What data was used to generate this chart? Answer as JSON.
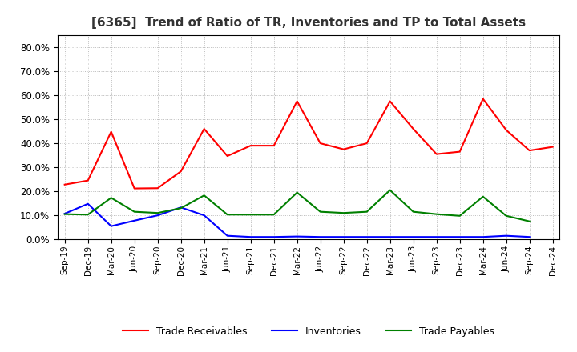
{
  "title": "[6365]  Trend of Ratio of TR, Inventories and TP to Total Assets",
  "x_labels": [
    "Sep-19",
    "Dec-19",
    "Mar-20",
    "Jun-20",
    "Sep-20",
    "Dec-20",
    "Mar-21",
    "Jun-21",
    "Sep-21",
    "Dec-21",
    "Mar-22",
    "Jun-22",
    "Sep-22",
    "Dec-22",
    "Mar-23",
    "Jun-23",
    "Sep-23",
    "Dec-23",
    "Mar-24",
    "Jun-24",
    "Sep-24",
    "Dec-24"
  ],
  "trade_receivables": [
    0.228,
    0.245,
    0.448,
    0.212,
    0.213,
    0.283,
    0.46,
    0.347,
    0.39,
    0.39,
    0.575,
    0.4,
    0.375,
    0.4,
    0.575,
    0.46,
    0.355,
    0.365,
    0.585,
    0.455,
    0.37,
    0.385
  ],
  "inventories": [
    0.107,
    0.148,
    0.055,
    0.078,
    0.1,
    0.133,
    0.1,
    0.015,
    0.01,
    0.01,
    0.012,
    0.01,
    0.01,
    0.01,
    0.01,
    0.01,
    0.01,
    0.01,
    0.01,
    0.015,
    0.01,
    null
  ],
  "trade_payables": [
    0.105,
    0.103,
    0.173,
    0.115,
    0.11,
    0.13,
    0.183,
    0.103,
    0.103,
    0.103,
    0.195,
    0.115,
    0.11,
    0.115,
    0.205,
    0.115,
    0.105,
    0.098,
    0.178,
    0.098,
    0.075,
    null
  ],
  "tr_color": "#FF0000",
  "inv_color": "#0000FF",
  "tp_color": "#008000",
  "ylim": [
    0.0,
    0.85
  ],
  "yticks": [
    0.0,
    0.1,
    0.2,
    0.3,
    0.4,
    0.5,
    0.6,
    0.7,
    0.8
  ],
  "background_color": "#FFFFFF",
  "plot_bg_color": "#FFFFFF",
  "grid_color": "#AAAAAA",
  "legend_labels": [
    "Trade Receivables",
    "Inventories",
    "Trade Payables"
  ]
}
